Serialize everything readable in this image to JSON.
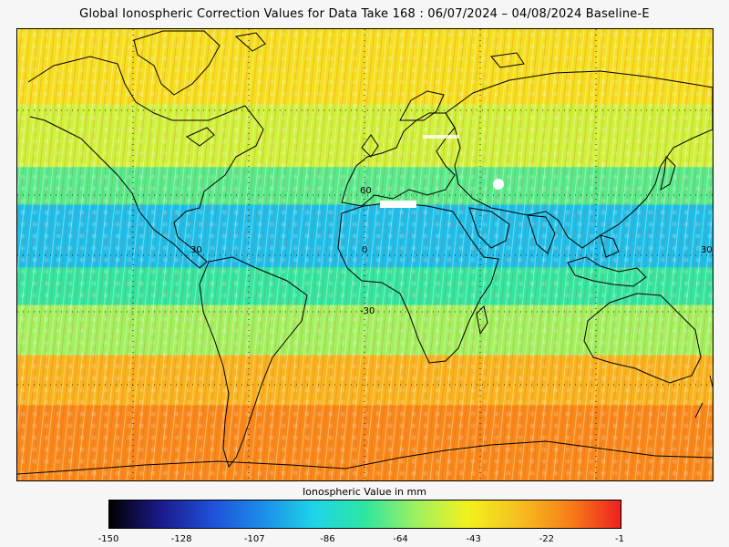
{
  "title": "Global Ionospheric Correction Values for Data Take 168 : 06/07/2024 – 04/08/2024 Baseline-E",
  "colorbar": {
    "label": "Ionospheric Value in mm",
    "ticks": [
      "-150",
      "-128",
      "-107",
      "-86",
      "-64",
      "-43",
      "-22",
      "-1"
    ],
    "min": -150,
    "max": -1,
    "colors": [
      "#000000",
      "#1a1a8a",
      "#1f4fd8",
      "#1c8de8",
      "#1ed5e8",
      "#2ee6a0",
      "#9ef060",
      "#f2f21e",
      "#f7c020",
      "#f78018",
      "#ee2020"
    ]
  },
  "map": {
    "lat_labels": [
      "60",
      "30",
      "0",
      "-30",
      "30"
    ],
    "bands": [
      {
        "lat_top": 90,
        "lat_bottom": 60,
        "value": -40
      },
      {
        "lat_top": 60,
        "lat_bottom": 35,
        "value": -52
      },
      {
        "lat_top": 35,
        "lat_bottom": 20,
        "value": -70
      },
      {
        "lat_top": 20,
        "lat_bottom": -5,
        "value": -95
      },
      {
        "lat_top": -5,
        "lat_bottom": -20,
        "value": -75
      },
      {
        "lat_top": -20,
        "lat_bottom": -40,
        "value": -60
      },
      {
        "lat_top": -40,
        "lat_bottom": -60,
        "value": -28
      },
      {
        "lat_top": -60,
        "lat_bottom": -90,
        "value": -18
      }
    ],
    "continent_color": "#000000",
    "graticule_color": "#000000"
  }
}
